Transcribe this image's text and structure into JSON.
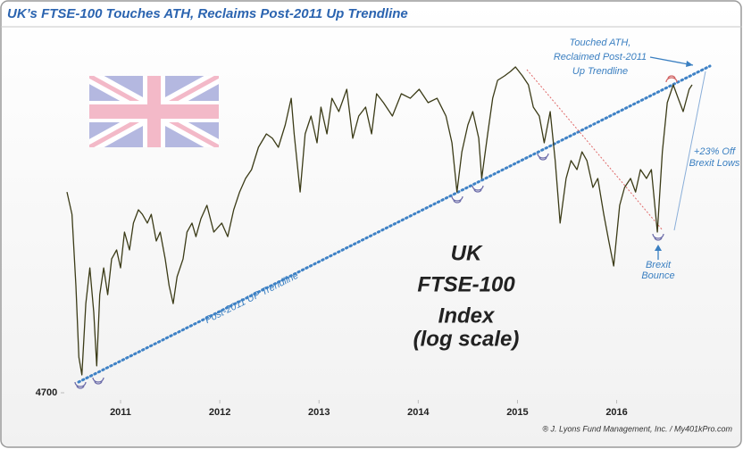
{
  "chart_data": {
    "type": "line",
    "title": "UK’s FTSE-100 Touches ATH, Reclaims Post-2011 Up Trendline",
    "x": [
      2010.46,
      2010.51,
      2010.55,
      2010.58,
      2010.61,
      2010.65,
      2010.69,
      2010.73,
      2010.76,
      2010.79,
      2010.83,
      2010.87,
      2010.91,
      2010.96,
      2011.0,
      2011.04,
      2011.09,
      2011.13,
      2011.18,
      2011.22,
      2011.27,
      2011.31,
      2011.36,
      2011.4,
      2011.45,
      2011.49,
      2011.53,
      2011.57,
      2011.63,
      2011.67,
      2011.72,
      2011.76,
      2011.81,
      2011.87,
      2011.94,
      2012.02,
      2012.08,
      2012.14,
      2012.2,
      2012.26,
      2012.32,
      2012.39,
      2012.47,
      2012.53,
      2012.59,
      2012.66,
      2012.72,
      2012.75,
      2012.81,
      2012.86,
      2012.92,
      2012.98,
      2013.02,
      2013.08,
      2013.13,
      2013.2,
      2013.28,
      2013.34,
      2013.4,
      2013.47,
      2013.53,
      2013.58,
      2013.65,
      2013.74,
      2013.83,
      2013.92,
      2014.01,
      2014.1,
      2014.19,
      2014.28,
      2014.34,
      2014.39,
      2014.44,
      2014.5,
      2014.55,
      2014.61,
      2014.64,
      2014.7,
      2014.75,
      2014.8,
      2014.87,
      2014.93,
      2014.98,
      2015.05,
      2015.11,
      2015.16,
      2015.22,
      2015.27,
      2015.33,
      2015.38,
      2015.43,
      2015.49,
      2015.54,
      2015.6,
      2015.65,
      2015.7,
      2015.76,
      2015.81,
      2015.87,
      2015.92,
      2015.97,
      2016.03,
      2016.08,
      2016.14,
      2016.19,
      2016.24,
      2016.3,
      2016.35,
      2016.41,
      2016.46,
      2016.51,
      2016.57,
      2016.62,
      2016.67,
      2016.73,
      2016.76
    ],
    "values": [
      6113,
      5937,
      5407,
      4925,
      4811,
      5282,
      5535,
      5221,
      4868,
      5344,
      5535,
      5344,
      5600,
      5666,
      5535,
      5800,
      5666,
      5869,
      5972,
      5937,
      5869,
      5937,
      5733,
      5800,
      5600,
      5407,
      5282,
      5471,
      5600,
      5800,
      5869,
      5766,
      5903,
      6007,
      5800,
      5869,
      5766,
      5972,
      6113,
      6222,
      6295,
      6481,
      6596,
      6558,
      6481,
      6673,
      6911,
      6596,
      6113,
      6596,
      6752,
      6519,
      6831,
      6596,
      6911,
      6791,
      6993,
      6558,
      6752,
      6831,
      6596,
      6952,
      6871,
      6752,
      6952,
      6911,
      6993,
      6871,
      6911,
      6752,
      6519,
      6113,
      6443,
      6673,
      6791,
      6558,
      6222,
      6596,
      6911,
      7075,
      7116,
      7158,
      7200,
      7116,
      7034,
      6831,
      6752,
      6519,
      6791,
      6369,
      5869,
      6222,
      6369,
      6295,
      6443,
      6369,
      6149,
      6222,
      5937,
      5733,
      5548,
      6007,
      6149,
      6222,
      6113,
      6295,
      6222,
      6295,
      5800,
      6443,
      6871,
      7034,
      6911,
      6791,
      6993,
      7034
    ],
    "color": "#3b3b17",
    "xlim": [
      2010.46,
      2016.76
    ],
    "xticks": [
      2011,
      2012,
      2013,
      2014,
      2015,
      2016
    ],
    "ylim": [
      4700,
      7200
    ],
    "yticks": [
      4700
    ],
    "yscale": "log",
    "annotations": {
      "ath": [
        "Touched ATH,",
        "Reclaimed Post-2011",
        "Up Trendline"
      ],
      "brexit_lows": [
        "+23% Off",
        "Brexit Lows"
      ],
      "brexit_bounce": [
        "Brexit",
        "Bounce"
      ],
      "index": [
        "UK",
        "FTSE-100",
        "Index"
      ],
      "log_scale": "(log scale)",
      "trendline": "Post-2011 UP Trendline"
    },
    "source": "® J. Lyons Fund Management, Inc. / My401kPro.com"
  }
}
